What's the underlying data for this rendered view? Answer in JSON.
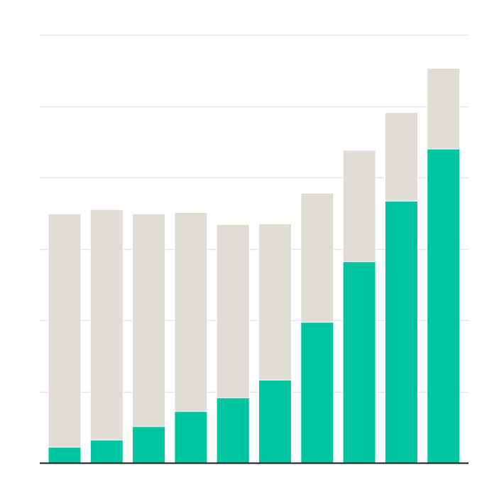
{
  "chart_data": {
    "type": "bar",
    "stacked": true,
    "title": "",
    "xlabel": "",
    "ylabel": "",
    "ylim": [
      0,
      6
    ],
    "grid": true,
    "legend": "none",
    "categories": [
      "",
      "",
      "",
      "",
      "",
      "",
      "",
      "",
      "",
      ""
    ],
    "series": [
      {
        "color": "#00c5a1",
        "values": [
          0.22,
          0.32,
          0.51,
          0.72,
          0.91,
          1.16,
          1.97,
          2.82,
          3.67,
          4.4
        ]
      },
      {
        "color": "#e0ddd6",
        "values": [
          3.27,
          3.23,
          2.98,
          2.79,
          2.43,
          2.19,
          1.81,
          1.56,
          1.24,
          1.13
        ]
      }
    ]
  }
}
